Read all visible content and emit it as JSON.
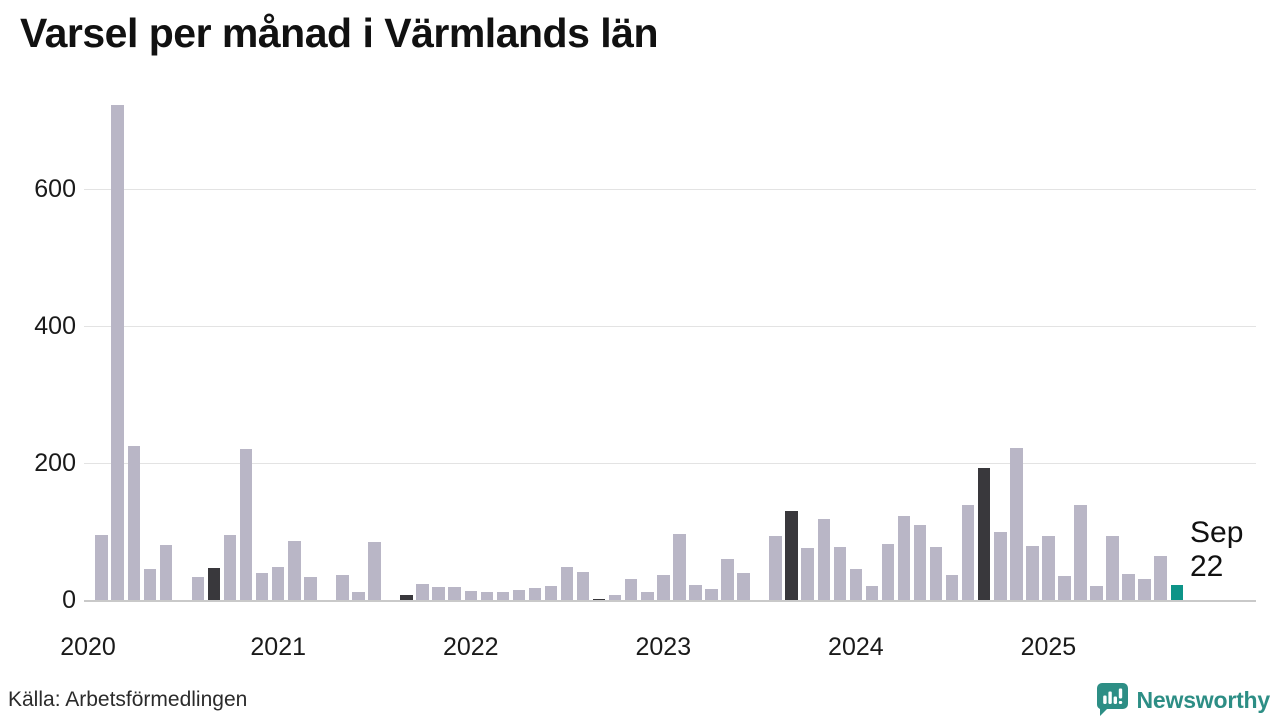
{
  "title": "Varsel per månad i Värmlands län",
  "source": "Källa: Arbetsförmedlingen",
  "annotation": {
    "line1": "Sep",
    "line2": "22"
  },
  "branding": {
    "name": "Newsworthy",
    "icon": "speech-bubble-bar-chart-icon",
    "color": "#2d8e85"
  },
  "colors": {
    "bar": "#b9b6c6",
    "september_highlight": "#39383c",
    "current_month": "#0d9488",
    "grid": "#e3e3e3",
    "axis": "#c9c9c9",
    "text": "#1a1a1a"
  },
  "chart_data": {
    "type": "bar",
    "title": "Varsel per månad i Värmlands län",
    "xlabel": "",
    "ylabel": "",
    "ylim": [
      0,
      740
    ],
    "yticks": [
      0,
      200,
      400,
      600
    ],
    "grid": "horizontal",
    "legend": "none",
    "years": [
      "2020",
      "2021",
      "2022",
      "2023",
      "2024",
      "2025"
    ],
    "months": [
      {
        "month": "2020-02",
        "value": 95,
        "kind": "normal"
      },
      {
        "month": "2020-03",
        "value": 722,
        "kind": "normal"
      },
      {
        "month": "2020-04",
        "value": 225,
        "kind": "normal"
      },
      {
        "month": "2020-05",
        "value": 45,
        "kind": "normal"
      },
      {
        "month": "2020-06",
        "value": 80,
        "kind": "normal"
      },
      {
        "month": "2020-07",
        "value": 0,
        "kind": "normal"
      },
      {
        "month": "2020-08",
        "value": 33,
        "kind": "normal"
      },
      {
        "month": "2020-09",
        "value": 47,
        "kind": "september"
      },
      {
        "month": "2020-10",
        "value": 95,
        "kind": "normal"
      },
      {
        "month": "2020-11",
        "value": 220,
        "kind": "normal"
      },
      {
        "month": "2020-12",
        "value": 40,
        "kind": "normal"
      },
      {
        "month": "2021-01",
        "value": 48,
        "kind": "normal"
      },
      {
        "month": "2021-02",
        "value": 86,
        "kind": "normal"
      },
      {
        "month": "2021-03",
        "value": 33,
        "kind": "normal"
      },
      {
        "month": "2021-04",
        "value": 0,
        "kind": "normal"
      },
      {
        "month": "2021-05",
        "value": 36,
        "kind": "normal"
      },
      {
        "month": "2021-06",
        "value": 11,
        "kind": "normal"
      },
      {
        "month": "2021-07",
        "value": 85,
        "kind": "normal"
      },
      {
        "month": "2021-08",
        "value": 0,
        "kind": "normal"
      },
      {
        "month": "2021-09",
        "value": 8,
        "kind": "september"
      },
      {
        "month": "2021-10",
        "value": 24,
        "kind": "normal"
      },
      {
        "month": "2021-11",
        "value": 19,
        "kind": "normal"
      },
      {
        "month": "2021-12",
        "value": 19,
        "kind": "normal"
      },
      {
        "month": "2022-01",
        "value": 13,
        "kind": "normal"
      },
      {
        "month": "2022-02",
        "value": 12,
        "kind": "normal"
      },
      {
        "month": "2022-03",
        "value": 11,
        "kind": "normal"
      },
      {
        "month": "2022-04",
        "value": 14,
        "kind": "normal"
      },
      {
        "month": "2022-05",
        "value": 17,
        "kind": "normal"
      },
      {
        "month": "2022-06",
        "value": 21,
        "kind": "normal"
      },
      {
        "month": "2022-07",
        "value": 48,
        "kind": "normal"
      },
      {
        "month": "2022-08",
        "value": 41,
        "kind": "normal"
      },
      {
        "month": "2022-09",
        "value": 2,
        "kind": "september"
      },
      {
        "month": "2022-10",
        "value": 7,
        "kind": "normal"
      },
      {
        "month": "2022-11",
        "value": 30,
        "kind": "normal"
      },
      {
        "month": "2022-12",
        "value": 11,
        "kind": "normal"
      },
      {
        "month": "2023-01",
        "value": 37,
        "kind": "normal"
      },
      {
        "month": "2023-02",
        "value": 97,
        "kind": "normal"
      },
      {
        "month": "2023-03",
        "value": 22,
        "kind": "normal"
      },
      {
        "month": "2023-04",
        "value": 16,
        "kind": "normal"
      },
      {
        "month": "2023-05",
        "value": 60,
        "kind": "normal"
      },
      {
        "month": "2023-06",
        "value": 40,
        "kind": "normal"
      },
      {
        "month": "2023-07",
        "value": 0,
        "kind": "normal"
      },
      {
        "month": "2023-08",
        "value": 93,
        "kind": "normal"
      },
      {
        "month": "2023-09",
        "value": 130,
        "kind": "september"
      },
      {
        "month": "2023-10",
        "value": 76,
        "kind": "normal"
      },
      {
        "month": "2023-11",
        "value": 118,
        "kind": "normal"
      },
      {
        "month": "2023-12",
        "value": 78,
        "kind": "normal"
      },
      {
        "month": "2024-01",
        "value": 45,
        "kind": "normal"
      },
      {
        "month": "2024-02",
        "value": 21,
        "kind": "normal"
      },
      {
        "month": "2024-03",
        "value": 82,
        "kind": "normal"
      },
      {
        "month": "2024-04",
        "value": 122,
        "kind": "normal"
      },
      {
        "month": "2024-05",
        "value": 110,
        "kind": "normal"
      },
      {
        "month": "2024-06",
        "value": 78,
        "kind": "normal"
      },
      {
        "month": "2024-07",
        "value": 36,
        "kind": "normal"
      },
      {
        "month": "2024-08",
        "value": 138,
        "kind": "normal"
      },
      {
        "month": "2024-09",
        "value": 193,
        "kind": "september"
      },
      {
        "month": "2024-10",
        "value": 99,
        "kind": "normal"
      },
      {
        "month": "2024-11",
        "value": 222,
        "kind": "normal"
      },
      {
        "month": "2024-12",
        "value": 79,
        "kind": "normal"
      },
      {
        "month": "2025-01",
        "value": 93,
        "kind": "normal"
      },
      {
        "month": "2025-02",
        "value": 35,
        "kind": "normal"
      },
      {
        "month": "2025-03",
        "value": 138,
        "kind": "normal"
      },
      {
        "month": "2025-04",
        "value": 20,
        "kind": "normal"
      },
      {
        "month": "2025-05",
        "value": 94,
        "kind": "normal"
      },
      {
        "month": "2025-06",
        "value": 38,
        "kind": "normal"
      },
      {
        "month": "2025-07",
        "value": 31,
        "kind": "normal"
      },
      {
        "month": "2025-08",
        "value": 64,
        "kind": "normal"
      },
      {
        "month": "2025-09",
        "value": 22,
        "kind": "current"
      }
    ]
  }
}
